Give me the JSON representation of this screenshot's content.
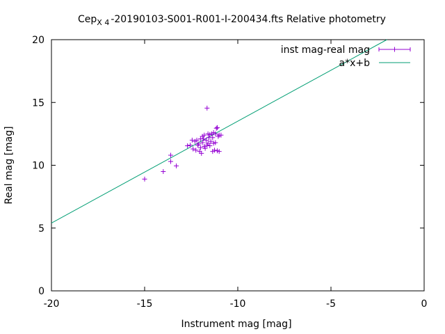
{
  "chart_data": {
    "type": "scatter",
    "title": {
      "prefix": "Cep",
      "subscript": "X 4",
      "suffix": "-20190103-S001-R001-I-200434.fts Relative photometry"
    },
    "xlabel": "Instrument mag [mag]",
    "ylabel": "Real mag [mag]",
    "xlim": [
      -20,
      0
    ],
    "ylim": [
      0,
      20
    ],
    "xticks": [
      -20,
      -15,
      -10,
      -5,
      0
    ],
    "yticks": [
      0,
      5,
      10,
      15,
      20
    ],
    "xtick_labels": [
      "-20",
      "-15",
      "-10",
      "-5",
      "0"
    ],
    "ytick_labels": [
      "0",
      "5",
      "10",
      "15",
      "20"
    ],
    "grid": false,
    "legend_position": "top-right",
    "series": [
      {
        "name": "inst mag-real mag",
        "kind": "points-with-errorbars",
        "color": "#9400d3",
        "points": [
          [
            -15.0,
            8.9
          ],
          [
            -14.0,
            9.5
          ],
          [
            -13.6,
            10.8
          ],
          [
            -13.6,
            10.3
          ],
          [
            -13.3,
            9.95
          ],
          [
            -12.7,
            11.55
          ],
          [
            -12.55,
            11.6
          ],
          [
            -12.45,
            12.0
          ],
          [
            -12.4,
            11.3
          ],
          [
            -12.3,
            11.9
          ],
          [
            -12.25,
            11.2
          ],
          [
            -12.2,
            12.0
          ],
          [
            -12.15,
            11.6
          ],
          [
            -12.1,
            11.7
          ],
          [
            -12.05,
            11.1
          ],
          [
            -12.0,
            12.1
          ],
          [
            -12.0,
            11.4
          ],
          [
            -11.95,
            10.95
          ],
          [
            -11.9,
            11.8
          ],
          [
            -11.9,
            12.3
          ],
          [
            -11.85,
            12.1
          ],
          [
            -11.8,
            11.5
          ],
          [
            -11.8,
            12.4
          ],
          [
            -11.75,
            11.35
          ],
          [
            -11.7,
            12.0
          ],
          [
            -11.65,
            14.55
          ],
          [
            -11.65,
            11.6
          ],
          [
            -11.6,
            12.5
          ],
          [
            -11.6,
            11.75
          ],
          [
            -11.55,
            12.2
          ],
          [
            -11.5,
            11.55
          ],
          [
            -11.5,
            12.45
          ],
          [
            -11.45,
            11.9
          ],
          [
            -11.4,
            12.5
          ],
          [
            -11.35,
            11.1
          ],
          [
            -11.35,
            12.2
          ],
          [
            -11.3,
            11.75
          ],
          [
            -11.3,
            12.6
          ],
          [
            -11.25,
            11.2
          ],
          [
            -11.2,
            12.5
          ],
          [
            -11.2,
            11.8
          ],
          [
            -11.15,
            12.95
          ],
          [
            -11.1,
            13.0
          ],
          [
            -11.1,
            11.15
          ],
          [
            -11.05,
            12.3
          ],
          [
            -11.0,
            11.1
          ],
          [
            -11.0,
            12.4
          ],
          [
            -10.9,
            12.4
          ]
        ]
      },
      {
        "name": "a*x+b",
        "kind": "line",
        "color": "#009e73",
        "x": [
          -20,
          -2.0
        ],
        "y": [
          5.4,
          20.0
        ]
      }
    ]
  }
}
